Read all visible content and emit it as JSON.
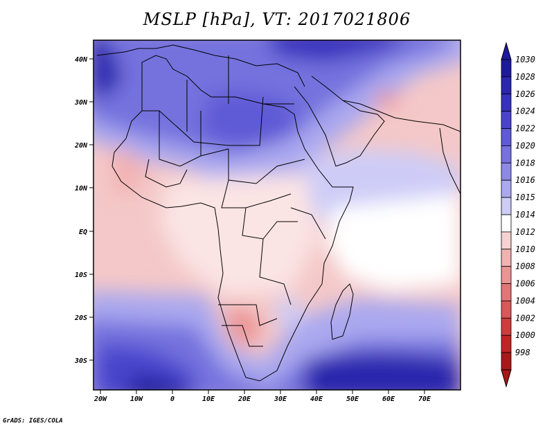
{
  "title": "MSLP [hPa], VT: 2017021806",
  "footer": "GrADS: IGES/COLA",
  "axes": {
    "lat_labels": [
      "40N",
      "30N",
      "20N",
      "10N",
      "EQ",
      "10S",
      "20S",
      "30S"
    ],
    "lon_labels": [
      "20W",
      "10W",
      "0",
      "10E",
      "20E",
      "30E",
      "40E",
      "50E",
      "60E",
      "70E"
    ]
  },
  "colorbar": {
    "labels": [
      "1030",
      "1028",
      "1026",
      "1024",
      "1022",
      "1020",
      "1018",
      "1016",
      "1015",
      "1014",
      "1012",
      "1010",
      "1008",
      "1006",
      "1004",
      "1002",
      "1000",
      "998"
    ],
    "colors": [
      "#1e1a9c",
      "#2a26ad",
      "#3731bd",
      "#4a44cc",
      "#5f5ad6",
      "#7572de",
      "#8d8ae6",
      "#aaa8ef",
      "#cdccf7",
      "#ffffff",
      "#f7d2d2",
      "#f2b2b2",
      "#ea9494",
      "#e27676",
      "#d95858",
      "#cf3c3c",
      "#c02424",
      "#a81818"
    ]
  },
  "map_data": {
    "variable": "MSLP",
    "units": "hPa",
    "valid_time": "2017021806"
  }
}
